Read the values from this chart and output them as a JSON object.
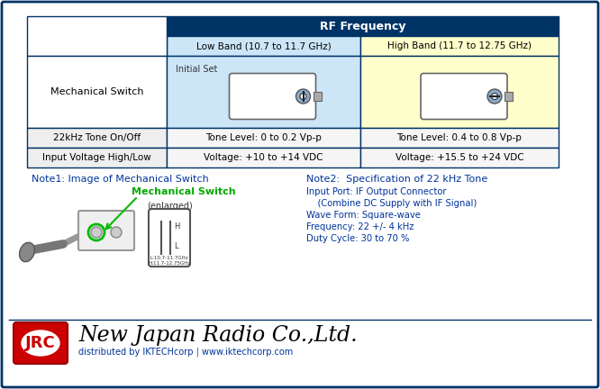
{
  "bg_color": "#ffffff",
  "border_color": "#003366",
  "table_header_bg": "#003366",
  "table_header_text": "#ffffff",
  "low_band_bg": "#cce6f7",
  "high_band_bg": "#ffffcc",
  "note_title_color": "#003399",
  "mech_switch_label_color": "#00aa00",
  "note2_text_color": "#003399",
  "rf_freq_label": "RF Frequency",
  "low_band_label": "Low Band (10.7 to 11.7 GHz)",
  "high_band_label": "High Band (11.7 to 12.75 GHz)",
  "row1_label": "Mechanical Switch",
  "row1_low": "Initial Set",
  "row2_label": "22kHz Tone On/Off",
  "row2_low": "Tone Level: 0 to 0.2 Vp-p",
  "row2_high": "Tone Level: 0.4 to 0.8 Vp-p",
  "row3_label": "Input Voltage High/Low",
  "row3_low": "Voltage: +10 to +14 VDC",
  "row3_high": "Voltage: +15.5 to +24 VDC",
  "note1_title": "Note1: Image of Mechanical Switch",
  "note1_switch_label": "Mechanical Switch",
  "note1_enlarged": "(enlarged)",
  "note2_title": "Note2:  Specification of 22 kHz Tone",
  "note2_line1": "Input Port: IF Output Connector",
  "note2_line2": "    (Combine DC Supply with IF Signal)",
  "note2_line3": "Wave Form: Square-wave",
  "note2_line4": "Frequency: 22 +/- 4 kHz",
  "note2_line5": "Duty Cycle: 30 to 70 %",
  "jrc_bg": "#cc0000",
  "jrc_text": "JRC",
  "company_name": "New Japan Radio Co.,Ltd.",
  "distributor": "distributed by IKTECHcorp | www.iktechcorp.com"
}
